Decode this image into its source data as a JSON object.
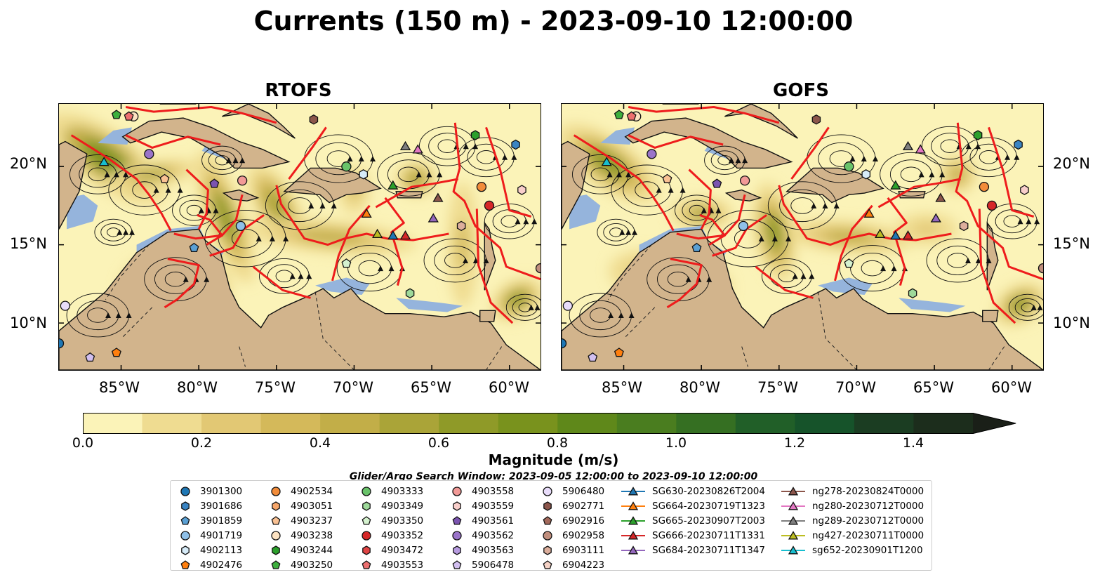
{
  "title": "Currents (150 m) - 2023-09-10 12:00:00",
  "panels": [
    {
      "name": "RTOFS"
    },
    {
      "name": "GOFS"
    }
  ],
  "axes": {
    "lon_ticks": [
      "85°W",
      "80°W",
      "75°W",
      "70°W",
      "65°W",
      "60°W"
    ],
    "lat_ticks": [
      "20°N",
      "15°N",
      "10°N"
    ],
    "lon_range": [
      -89,
      -58
    ],
    "lat_range": [
      7,
      24
    ]
  },
  "colorbar": {
    "label": "Magnitude (m/s)",
    "ticks": [
      "0.0",
      "0.2",
      "0.4",
      "0.6",
      "0.8",
      "1.0",
      "1.2",
      "1.4"
    ],
    "range": [
      0.0,
      1.5
    ],
    "step": 0.1,
    "extend": "max",
    "colors": [
      "#fbf3b8",
      "#efdc91",
      "#e2c874",
      "#d4b95a",
      "#c2ae48",
      "#aaa438",
      "#8f9a28",
      "#79921d",
      "#5f881a",
      "#4a7d1f",
      "#356f22",
      "#215f28",
      "#16532a",
      "#1b3d22",
      "#1c2d1c",
      "#1a1f18"
    ]
  },
  "search_window": "Glider/Argo Search Window: 2023-09-05 12:00:00 to 2023-09-10 12:00:00",
  "legend": [
    [
      {
        "label": "3901300",
        "marker": "circle",
        "color": "#1f77b4"
      },
      {
        "label": "3901686",
        "marker": "hexagon",
        "color": "#3a84c3"
      },
      {
        "label": "3901859",
        "marker": "pentagon",
        "color": "#5aa0d4"
      },
      {
        "label": "4901719",
        "marker": "circle",
        "color": "#8fc0e8"
      },
      {
        "label": "4902113",
        "marker": "hexagon",
        "color": "#d6ebf8"
      },
      {
        "label": "4902476",
        "marker": "pentagon",
        "color": "#ff7f0e"
      }
    ],
    [
      {
        "label": "4902534",
        "marker": "circle",
        "color": "#f28c3a"
      },
      {
        "label": "4903051",
        "marker": "hexagon",
        "color": "#f6a66a"
      },
      {
        "label": "4903237",
        "marker": "pentagon",
        "color": "#f9c193"
      },
      {
        "label": "4903238",
        "marker": "circle",
        "color": "#fde3c2"
      },
      {
        "label": "4903244",
        "marker": "hexagon",
        "color": "#2ca02c"
      },
      {
        "label": "4903250",
        "marker": "pentagon",
        "color": "#3daf3d"
      }
    ],
    [
      {
        "label": "4903333",
        "marker": "circle",
        "color": "#69c36a"
      },
      {
        "label": "4903349",
        "marker": "hexagon",
        "color": "#9ed99a"
      },
      {
        "label": "4903350",
        "marker": "pentagon",
        "color": "#d5f2cf"
      },
      {
        "label": "4903352",
        "marker": "circle",
        "color": "#d62728"
      },
      {
        "label": "4903472",
        "marker": "hexagon",
        "color": "#e04444"
      },
      {
        "label": "4903553",
        "marker": "pentagon",
        "color": "#ec6f6f"
      }
    ],
    [
      {
        "label": "4903558",
        "marker": "circle",
        "color": "#f29a97"
      },
      {
        "label": "4903559",
        "marker": "hexagon",
        "color": "#f9cfcb"
      },
      {
        "label": "4903561",
        "marker": "pentagon",
        "color": "#7b54b0"
      },
      {
        "label": "4903562",
        "marker": "circle",
        "color": "#9a74c9"
      },
      {
        "label": "4903563",
        "marker": "hexagon",
        "color": "#b79be0"
      },
      {
        "label": "5906478",
        "marker": "pentagon",
        "color": "#d2bff0"
      }
    ],
    [
      {
        "label": "5906480",
        "marker": "circle",
        "color": "#e8dcfa"
      },
      {
        "label": "6902771",
        "marker": "hexagon",
        "color": "#8c564b"
      },
      {
        "label": "6902916",
        "marker": "pentagon",
        "color": "#a3695b"
      },
      {
        "label": "6902958",
        "marker": "circle",
        "color": "#c08e7d"
      },
      {
        "label": "6903111",
        "marker": "hexagon",
        "color": "#dcae9c"
      },
      {
        "label": "6904223",
        "marker": "pentagon",
        "color": "#f5d2c6"
      }
    ],
    [
      {
        "label": "SG630-20230826T2004",
        "marker": "triangle",
        "color": "#1f77b4"
      },
      {
        "label": "SG664-20230719T1323",
        "marker": "triangle",
        "color": "#ff7f0e"
      },
      {
        "label": "SG665-20230907T2003",
        "marker": "triangle",
        "color": "#2ca02c"
      },
      {
        "label": "SG666-20230711T1331",
        "marker": "triangle",
        "color": "#d62728"
      },
      {
        "label": "SG684-20230711T1347",
        "marker": "triangle",
        "color": "#9467bd"
      }
    ],
    [
      {
        "label": "ng278-20230824T0000",
        "marker": "triangle",
        "color": "#8c564b"
      },
      {
        "label": "ng280-20230712T0000",
        "marker": "triangle",
        "color": "#e377c2"
      },
      {
        "label": "ng289-20230712T0000",
        "marker": "triangle",
        "color": "#7f7f7f"
      },
      {
        "label": "ng427-20230711T0000",
        "marker": "triangle",
        "color": "#bcbd22"
      },
      {
        "label": "sg652-20230901T1200",
        "marker": "triangle",
        "color": "#17becf"
      }
    ]
  ],
  "observations": [
    {
      "id": "3901300",
      "lon": -89.0,
      "lat": 8.7
    },
    {
      "id": "3901686",
      "lon": -59.6,
      "lat": 21.4
    },
    {
      "id": "4901719",
      "lon": -77.3,
      "lat": 16.2
    },
    {
      "id": "4902113",
      "lon": -69.4,
      "lat": 19.5
    },
    {
      "id": "3901859",
      "lon": -80.3,
      "lat": 14.8
    },
    {
      "id": "4902476",
      "lon": -85.3,
      "lat": 8.1
    },
    {
      "id": "4902534",
      "lon": -61.8,
      "lat": 18.7
    },
    {
      "id": "4903238",
      "lon": -84.2,
      "lat": 23.2
    },
    {
      "id": "4903250",
      "lon": -85.3,
      "lat": 23.3
    },
    {
      "id": "4903333",
      "lon": -70.5,
      "lat": 20.0
    },
    {
      "id": "4903350",
      "lon": -70.5,
      "lat": 13.8
    },
    {
      "id": "4903352",
      "lon": -61.3,
      "lat": 17.5
    },
    {
      "id": "4903553",
      "lon": -84.5,
      "lat": 23.2
    },
    {
      "id": "4903558",
      "lon": -77.2,
      "lat": 19.1
    },
    {
      "id": "4903559",
      "lon": -59.2,
      "lat": 18.5
    },
    {
      "id": "4903561",
      "lon": -79.0,
      "lat": 18.9
    },
    {
      "id": "4903562",
      "lon": -83.2,
      "lat": 20.8
    },
    {
      "id": "5906478",
      "lon": -87.0,
      "lat": 7.8
    },
    {
      "id": "5906480",
      "lon": -88.6,
      "lat": 11.1
    },
    {
      "id": "6902771",
      "lon": -72.6,
      "lat": 23.0
    },
    {
      "id": "6902958",
      "lon": -58.0,
      "lat": 13.5
    },
    {
      "id": "6903111",
      "lon": -63.1,
      "lat": 16.2
    },
    {
      "id": "4903349",
      "lon": -66.4,
      "lat": 11.9
    },
    {
      "id": "4903244",
      "lon": -62.2,
      "lat": 22.0
    },
    {
      "id": "4903237",
      "lon": -82.2,
      "lat": 19.2
    }
  ],
  "gliders": [
    {
      "id": "sg652-20230901T1200",
      "lon": -86.1,
      "lat": 20.3
    },
    {
      "id": "SG664-20230719T1323",
      "lon": -69.2,
      "lat": 17.0
    },
    {
      "id": "SG665-20230907T2003",
      "lon": -67.5,
      "lat": 18.8
    },
    {
      "id": "SG630-20230826T2004",
      "lon": -67.5,
      "lat": 15.6
    },
    {
      "id": "SG666-20230711T1331",
      "lon": -66.7,
      "lat": 15.6
    },
    {
      "id": "SG684-20230711T1347",
      "lon": -64.9,
      "lat": 16.7
    },
    {
      "id": "ng289-20230712T0000",
      "lon": -66.7,
      "lat": 21.3
    },
    {
      "id": "ng280-20230712T0000",
      "lon": -65.9,
      "lat": 21.1
    },
    {
      "id": "ng278-20230824T0000",
      "lon": -64.6,
      "lat": 18.0
    },
    {
      "id": "ng427-20230711T0000",
      "lon": -68.5,
      "lat": 15.7
    }
  ]
}
